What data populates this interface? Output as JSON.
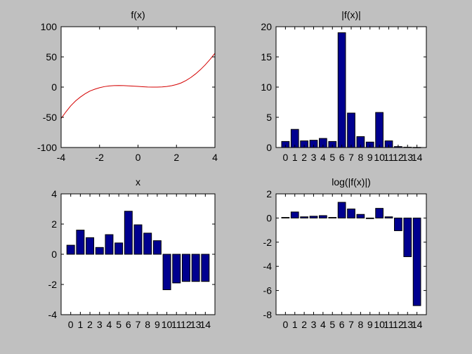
{
  "colors": {
    "figure_bg": "#c0c0c0",
    "axes_bg": "#ffffff",
    "line": "#d40000",
    "bar_fill": "#00008f",
    "bar_edge": "#000000"
  },
  "chart_data": [
    {
      "id": "fx",
      "type": "line",
      "title": "f(x)",
      "xlabel": "",
      "ylabel": "",
      "xlim": [
        -4,
        4
      ],
      "ylim": [
        -100,
        100
      ],
      "xticks": [
        -4,
        -2,
        0,
        2,
        4
      ],
      "xtick_labels": [
        "-4",
        "-2",
        "0",
        "2",
        "4"
      ],
      "yticks": [
        -100,
        -50,
        0,
        50,
        100
      ],
      "ytick_labels": [
        "-100",
        "-50",
        "0",
        "50",
        "100"
      ],
      "grid": false,
      "series": [
        {
          "x": [
            -4,
            -3.75,
            -3.5,
            -3.25,
            -3,
            -2.75,
            -2.5,
            -2.25,
            -2,
            -1.75,
            -1.5,
            -1.25,
            -1,
            -0.75,
            -0.5,
            -0.25,
            0,
            0.25,
            0.5,
            0.75,
            1,
            1.25,
            1.5,
            1.75,
            2,
            2.25,
            2.5,
            2.75,
            3,
            3.25,
            3.5,
            3.75,
            4
          ],
          "y": [
            -52,
            -41,
            -31,
            -23,
            -16.5,
            -11,
            -6.5,
            -3.5,
            -1,
            0.8,
            1.9,
            2.5,
            2.6,
            2.5,
            2.1,
            1.6,
            1.1,
            0.6,
            0.2,
            0,
            0,
            0.3,
            1,
            2.3,
            4.2,
            7,
            11,
            16,
            22,
            29,
            37,
            46,
            56
          ]
        }
      ]
    },
    {
      "id": "absfx",
      "type": "bar",
      "title": "|f(x)|",
      "xlabel": "",
      "ylabel": "",
      "categories": [
        "0",
        "1",
        "2",
        "3",
        "4",
        "5",
        "6",
        "7",
        "8",
        "9",
        "10",
        "11",
        "12",
        "13",
        "14"
      ],
      "values": [
        1.0,
        3.0,
        1.1,
        1.2,
        1.5,
        1.0,
        19.0,
        5.7,
        1.8,
        0.9,
        5.8,
        1.1,
        0.15,
        0.05,
        0.02
      ],
      "xlim": [
        -1,
        15
      ],
      "ylim": [
        0,
        20
      ],
      "yticks": [
        0,
        5,
        10,
        15,
        20
      ],
      "ytick_labels": [
        "0",
        "5",
        "10",
        "15",
        "20"
      ],
      "grid": false
    },
    {
      "id": "x",
      "type": "bar",
      "title": "x",
      "xlabel": "",
      "ylabel": "",
      "categories": [
        "0",
        "1",
        "2",
        "3",
        "4",
        "5",
        "6",
        "7",
        "8",
        "9",
        "10",
        "11",
        "12",
        "13",
        "14"
      ],
      "values": [
        0.6,
        1.6,
        1.1,
        0.45,
        1.3,
        0.75,
        2.85,
        1.95,
        1.4,
        0.9,
        -2.35,
        -1.9,
        -1.8,
        -1.8,
        -1.8
      ],
      "xlim": [
        -1,
        15
      ],
      "ylim": [
        -4,
        4
      ],
      "yticks": [
        -4,
        -2,
        0,
        2,
        4
      ],
      "ytick_labels": [
        "-4",
        "-2",
        "0",
        "2",
        "4"
      ],
      "grid": false
    },
    {
      "id": "logabsfx",
      "type": "bar",
      "title": "log(|f(x)|)",
      "xlabel": "",
      "ylabel": "",
      "categories": [
        "0",
        "1",
        "2",
        "3",
        "4",
        "5",
        "6",
        "7",
        "8",
        "9",
        "10",
        "11",
        "12",
        "13",
        "14"
      ],
      "values": [
        0.05,
        0.5,
        0.1,
        0.15,
        0.2,
        0.05,
        1.3,
        0.75,
        0.3,
        -0.05,
        0.8,
        0.1,
        -1.05,
        -3.2,
        -7.25
      ],
      "xlim": [
        -1,
        15
      ],
      "ylim": [
        -8,
        2
      ],
      "yticks": [
        -8,
        -6,
        -4,
        -2,
        0,
        2
      ],
      "ytick_labels": [
        "-8",
        "-6",
        "-4",
        "-2",
        "0",
        "2"
      ],
      "grid": false
    }
  ]
}
